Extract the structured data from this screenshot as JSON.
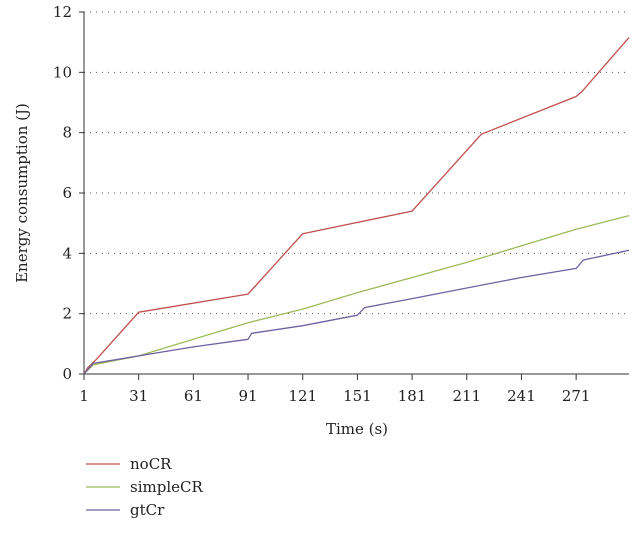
{
  "chart_data": {
    "type": "line",
    "title": "",
    "xlabel": "Time (s)",
    "ylabel": "Energy consumption (J)",
    "xlim": [
      1,
      300
    ],
    "ylim": [
      0,
      12
    ],
    "x_ticks": [
      1,
      31,
      61,
      91,
      121,
      151,
      181,
      211,
      241,
      271
    ],
    "y_ticks": [
      0,
      2,
      4,
      6,
      8,
      10,
      12
    ],
    "grid": "horizontal dotted",
    "legend_position": "bottom-left",
    "series": [
      {
        "name": "noCR",
        "color": "#c0504d",
        "points": [
          [
            1,
            0
          ],
          [
            3,
            0.2
          ],
          [
            8,
            0.5
          ],
          [
            31,
            2.05
          ],
          [
            91,
            2.65
          ],
          [
            121,
            4.65
          ],
          [
            181,
            5.4
          ],
          [
            219,
            7.95
          ],
          [
            271,
            9.2
          ],
          [
            274,
            9.35
          ],
          [
            300,
            11.15
          ]
        ]
      },
      {
        "name": "simpleCR",
        "color": "#9bbb59",
        "points": [
          [
            1,
            0
          ],
          [
            6,
            0.3
          ],
          [
            31,
            0.6
          ],
          [
            61,
            1.15
          ],
          [
            91,
            1.7
          ],
          [
            121,
            2.15
          ],
          [
            151,
            2.7
          ],
          [
            181,
            3.2
          ],
          [
            211,
            3.7
          ],
          [
            241,
            4.25
          ],
          [
            271,
            4.8
          ],
          [
            300,
            5.25
          ]
        ]
      },
      {
        "name": "gtCr",
        "color": "#7060a0",
        "points": [
          [
            1,
            0
          ],
          [
            6,
            0.35
          ],
          [
            31,
            0.6
          ],
          [
            61,
            0.9
          ],
          [
            91,
            1.15
          ],
          [
            93,
            1.35
          ],
          [
            121,
            1.6
          ],
          [
            151,
            1.95
          ],
          [
            155,
            2.2
          ],
          [
            181,
            2.5
          ],
          [
            211,
            2.85
          ],
          [
            241,
            3.2
          ],
          [
            271,
            3.5
          ],
          [
            275,
            3.78
          ],
          [
            300,
            4.1
          ]
        ]
      }
    ]
  }
}
